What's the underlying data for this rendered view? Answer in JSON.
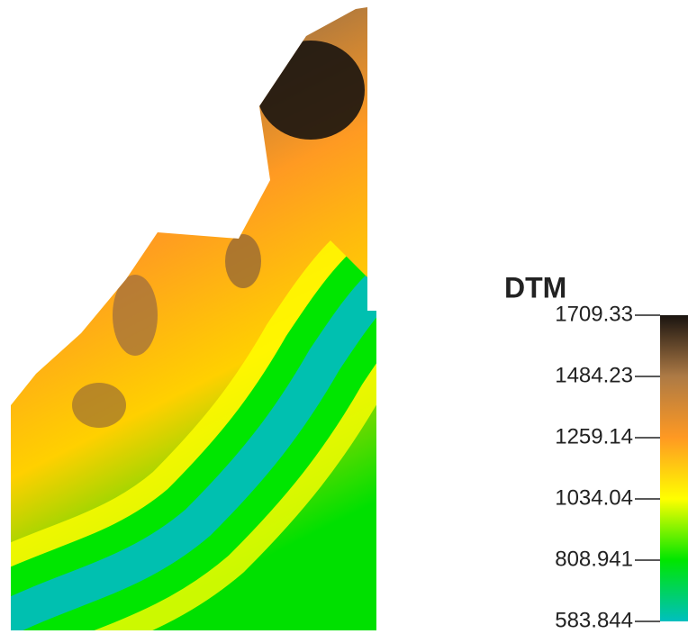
{
  "legend": {
    "title": "DTM",
    "range": [
      583.844,
      1709.33
    ],
    "ticks": [
      1709.33,
      1484.23,
      1259.14,
      1034.04,
      808.941,
      583.844
    ],
    "colors": [
      "#00bfbf",
      "#00e600",
      "#ffff00",
      "#ff9922",
      "#ad7a45",
      "#1a1410"
    ]
  }
}
